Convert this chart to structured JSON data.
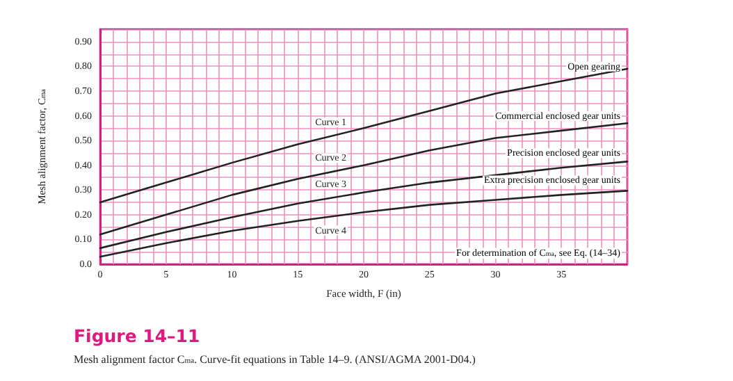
{
  "chart_data": {
    "type": "line",
    "title": "Figure 14–11",
    "subtitle": "Mesh alignment factor C$_{ma}$. Curve-fit equations in Table 14–9. (ANSI/AGMA 2001-D04.)",
    "xlabel": "Face width, F (in)",
    "ylabel": "Mesh alignment factor, C$_{ma}$",
    "x": [
      0,
      5,
      10,
      15,
      20,
      25,
      30,
      35,
      40
    ],
    "series": [
      {
        "name": "Curve 1",
        "color": "#222222",
        "values": [
          0.25,
          0.33,
          0.41,
          0.485,
          0.55,
          0.62,
          0.69,
          0.74,
          0.79
        ]
      },
      {
        "name": "Curve 2",
        "color": "#222222",
        "values": [
          0.12,
          0.2,
          0.28,
          0.345,
          0.4,
          0.46,
          0.51,
          0.54,
          0.57
        ]
      },
      {
        "name": "Curve 3",
        "color": "#222222",
        "values": [
          0.065,
          0.13,
          0.19,
          0.245,
          0.29,
          0.33,
          0.36,
          0.39,
          0.415
        ]
      },
      {
        "name": "Curve 4",
        "color": "#222222",
        "values": [
          0.03,
          0.085,
          0.135,
          0.175,
          0.21,
          0.24,
          0.26,
          0.28,
          0.297
        ]
      }
    ],
    "xlim": [
      0,
      40
    ],
    "xticks": [
      0,
      5,
      10,
      15,
      20,
      25,
      30,
      35
    ],
    "ylim": [
      0,
      0.95
    ],
    "yticks": [
      {
        "value": 0,
        "label": "0.0"
      },
      {
        "value": 0.1,
        "label": "0.10"
      },
      {
        "value": 0.2,
        "label": "0.20"
      },
      {
        "value": 0.3,
        "label": "0.30"
      },
      {
        "value": 0.4,
        "label": "0.40"
      },
      {
        "value": 0.5,
        "label": "0.50"
      },
      {
        "value": 0.6,
        "label": "0.60"
      },
      {
        "value": 0.7,
        "label": "0.70"
      },
      {
        "value": 0.8,
        "label": "0.80"
      },
      {
        "value": 0.9,
        "label": "0.90"
      }
    ],
    "grid": true,
    "marker": "none",
    "line_style": "solid",
    "annotations": [
      "Open gearing",
      "Commercial enclosed gear units",
      "Precision enclosed gear units",
      "Extra precision enclosed gear units",
      "For determination of C$_{ma}$, see Eq. (14–34)"
    ]
  }
}
